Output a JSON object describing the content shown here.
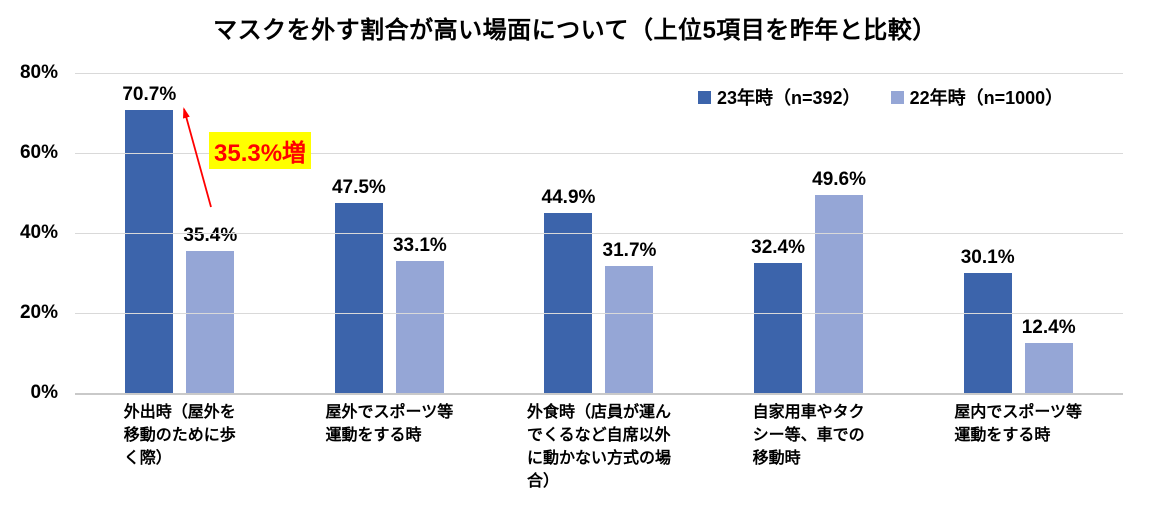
{
  "colors": {
    "series23": "#3c64ab",
    "series22": "#95a6d6",
    "gridline": "#d9d9d9",
    "axis": "#c9c9c9",
    "annotation_text": "#ff0000",
    "annotation_bg": "#ffff00",
    "arrow": "#ff0000"
  },
  "chart_data": {
    "type": "bar",
    "title": "マスクを外す割合が高い場面について（上位5項目を昨年と比較）",
    "categories": [
      "外出時（屋外を\n移動のために歩\nく際）",
      "屋外でスポーツ等\n運動をする時",
      "外食時（店員が運ん\nでくるなど自席以外\nに動かない方式の場\n合）",
      "自家用車やタク\nシー等、車での\n移動時",
      "屋内でスポーツ等\n運動をする時"
    ],
    "series": [
      {
        "name": "23年時（n=392）",
        "values": [
          70.7,
          47.5,
          44.9,
          32.4,
          30.1
        ]
      },
      {
        "name": "22年時（n=1000）",
        "values": [
          35.4,
          33.1,
          31.7,
          49.6,
          12.4
        ]
      }
    ],
    "ylim": [
      0,
      80
    ],
    "yticks": [
      "0%",
      "20%",
      "40%",
      "60%",
      "80%"
    ],
    "grid": true,
    "legend_position": "top-right",
    "value_label_suffix": "%",
    "annotation": {
      "text": "35.3%増"
    }
  }
}
